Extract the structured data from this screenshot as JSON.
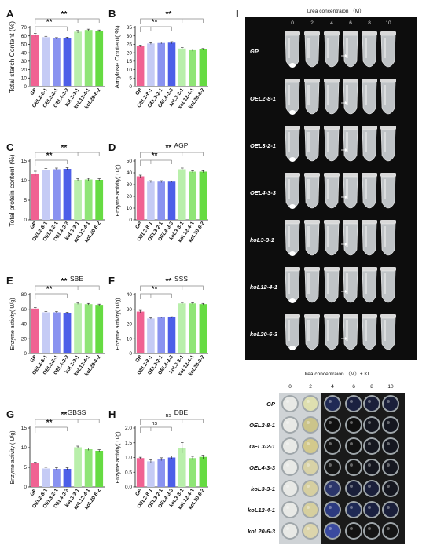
{
  "colors": {
    "GP": "#f06292",
    "OEL": "#c5cbf5",
    "OEL3": "#8a93f0",
    "OEL4": "#4d5ee8",
    "ko1": "#b9efab",
    "ko2": "#8fe576",
    "ko3": "#66db42"
  },
  "chart_data": [
    {
      "panel": "A",
      "type": "bar",
      "title": "",
      "ylabel": "Total starch Content (%)",
      "ylim": [
        0,
        70
      ],
      "yticks": [
        0,
        10,
        20,
        30,
        40,
        50,
        60,
        70
      ],
      "categories": [
        "GP",
        "OEL2-8-1",
        "OEL3-2-1",
        "OEL4-3-3",
        "koL3-3-1",
        "koL12-4-1",
        "koL20-6-2"
      ],
      "values": [
        61,
        58.5,
        57,
        57.5,
        65,
        67,
        66
      ],
      "errors": [
        2,
        1,
        1,
        1,
        1.5,
        1,
        1
      ],
      "sig": [
        {
          "label": "**",
          "from": 0,
          "to": 3,
          "level": 1
        },
        {
          "label": "**",
          "from": 0,
          "to": 6,
          "level": 2
        }
      ]
    },
    {
      "panel": "B",
      "type": "bar",
      "title": "",
      "ylabel": "Amylose Content( %)",
      "ylim": [
        0,
        35
      ],
      "yticks": [
        0,
        5,
        10,
        15,
        20,
        25,
        30,
        35
      ],
      "categories": [
        "GP",
        "OEL2-8-1",
        "OEL3-2-1",
        "OEL4-3-3",
        "koL3-3-1",
        "koL12-4-1",
        "koL20-6-2"
      ],
      "values": [
        24,
        25.5,
        25.8,
        26,
        22.5,
        21.5,
        22
      ],
      "errors": [
        0.5,
        0.5,
        0.5,
        0.6,
        0.5,
        0.6,
        0.5
      ],
      "sig": [
        {
          "label": "**",
          "from": 0,
          "to": 3,
          "level": 1
        },
        {
          "label": "**",
          "from": 0,
          "to": 6,
          "level": 2
        }
      ]
    },
    {
      "panel": "C",
      "type": "bar",
      "title": "",
      "ylabel": "Total protein content (%)",
      "ylim": [
        0,
        15
      ],
      "yticks": [
        0,
        5,
        10,
        15
      ],
      "categories": [
        "GP",
        "OEL2-8-1",
        "OEL3-2-1",
        "OEL4-3-3",
        "koL3-3-1",
        "koL12-4-1",
        "koL20-6-2"
      ],
      "values": [
        11.8,
        12.8,
        12.9,
        13,
        10.2,
        10.3,
        10.2
      ],
      "errors": [
        0.6,
        0.3,
        0.3,
        0.3,
        0.3,
        0.3,
        0.3
      ],
      "sig": [
        {
          "label": "**",
          "from": 0,
          "to": 3,
          "level": 1
        },
        {
          "label": "**",
          "from": 0,
          "to": 6,
          "level": 2
        }
      ]
    },
    {
      "panel": "D",
      "type": "bar",
      "title": "AGP",
      "ylabel": "Enzyme activity( U/g)",
      "ylim": [
        0,
        50
      ],
      "yticks": [
        0,
        10,
        20,
        30,
        40,
        50
      ],
      "categories": [
        "GP",
        "OEL2-8-1",
        "OEL3-2-1",
        "OEL4-3-3",
        "koL3-3-1",
        "koL12-4-1",
        "koL20-6-2"
      ],
      "values": [
        37,
        32.5,
        32.5,
        32.5,
        43,
        41,
        41
      ],
      "errors": [
        1,
        0.8,
        0.8,
        0.6,
        1,
        0.8,
        0.8
      ],
      "sig": [
        {
          "label": "**",
          "from": 0,
          "to": 3,
          "level": 1
        },
        {
          "label": "**",
          "from": 0,
          "to": 6,
          "level": 2
        }
      ]
    },
    {
      "panel": "E",
      "type": "bar",
      "title": "SBE",
      "ylabel": "Enzyme activity( U/g)",
      "ylim": [
        0,
        80
      ],
      "yticks": [
        0,
        20,
        40,
        60,
        80
      ],
      "categories": [
        "GP",
        "OEL2-8-1",
        "OEL3-2-1",
        "OEL4-3-3",
        "koL3-3-1",
        "koL12-4-1",
        "koL20-6-2"
      ],
      "values": [
        61,
        56,
        56,
        55,
        68,
        67,
        66
      ],
      "errors": [
        1.2,
        1,
        1,
        1,
        1.2,
        1,
        1
      ],
      "sig": [
        {
          "label": "**",
          "from": 0,
          "to": 3,
          "level": 1
        },
        {
          "label": "**",
          "from": 0,
          "to": 6,
          "level": 2
        }
      ]
    },
    {
      "panel": "F",
      "type": "bar",
      "title": "SSS",
      "ylabel": "Enzyme activity( U/g)",
      "ylim": [
        0,
        40
      ],
      "yticks": [
        0,
        10,
        20,
        30,
        40
      ],
      "categories": [
        "GP",
        "OEL2-8-1",
        "OEL3-2-1",
        "OEL4-3-3",
        "koL3-3-1",
        "koL12-4-1",
        "koL20-6-2"
      ],
      "values": [
        28.5,
        23.8,
        24.5,
        24.6,
        34,
        34,
        33.5
      ],
      "errors": [
        0.8,
        0.4,
        0.4,
        0.4,
        0.6,
        0.5,
        0.5
      ],
      "sig": [
        {
          "label": "**",
          "from": 0,
          "to": 3,
          "level": 1
        },
        {
          "label": "**",
          "from": 0,
          "to": 6,
          "level": 2
        }
      ]
    },
    {
      "panel": "G",
      "type": "bar",
      "title": "GBSS",
      "ylabel": "Enzyme activity ( U/g)",
      "ylim": [
        0,
        15
      ],
      "yticks": [
        0,
        5,
        10,
        15
      ],
      "categories": [
        "GP",
        "OEL2-8-1",
        "OEL3-2-1",
        "OEL4-3-3",
        "koL3-3-1",
        "koL12-4-1",
        "koL20-6-2"
      ],
      "values": [
        6,
        4.7,
        4.6,
        4.6,
        10.1,
        9.6,
        9.2
      ],
      "errors": [
        0.3,
        0.3,
        0.3,
        0.3,
        0.3,
        0.3,
        0.3
      ],
      "sig": [
        {
          "label": "**",
          "from": 0,
          "to": 3,
          "level": 1
        },
        {
          "label": "**",
          "from": 0,
          "to": 6,
          "level": 2
        }
      ]
    },
    {
      "panel": "H",
      "type": "bar",
      "title": "DBE",
      "ylabel": "Enzyme activity( U/g)",
      "ylim": [
        0,
        2.0
      ],
      "yticks": [
        0.0,
        0.5,
        1.0,
        1.5,
        2.0
      ],
      "categories": [
        "GP",
        "OEL2-8-1",
        "OEL3-2-1",
        "OEL4-3-3",
        "koL3-3-1",
        "koL12-4-1",
        "koL20-6-2"
      ],
      "values": [
        0.98,
        0.87,
        0.94,
        1.0,
        1.33,
        0.98,
        1.02
      ],
      "errors": [
        0.03,
        0.05,
        0.05,
        0.05,
        0.18,
        0.06,
        0.06
      ],
      "sig": [
        {
          "label": "ns",
          "from": 0,
          "to": 3,
          "level": 1
        },
        {
          "label": "ns",
          "from": 0,
          "to": 6,
          "level": 2
        }
      ]
    }
  ],
  "photo_top": {
    "panel": "I",
    "title": "Urea concentraion （M）",
    "columns": [
      "0",
      "2",
      "4",
      "6",
      "8",
      "10"
    ],
    "rows": [
      "GP",
      "OEL2-8-1",
      "OEL3-2-1",
      "OEL4-3-3",
      "koL3-3-1",
      "koL12-4-1",
      "koL20-6-3"
    ]
  },
  "photo_bottom": {
    "title": "Urea concentraion （M）+ KI",
    "columns": [
      "0",
      "2",
      "4",
      "6",
      "8",
      "10"
    ],
    "rows": [
      "GP",
      "OEL2-8-1",
      "OEL3-2-1",
      "OEL4-3-3",
      "koL3-3-1",
      "koL12-4-1",
      "koL20-6-3"
    ]
  }
}
